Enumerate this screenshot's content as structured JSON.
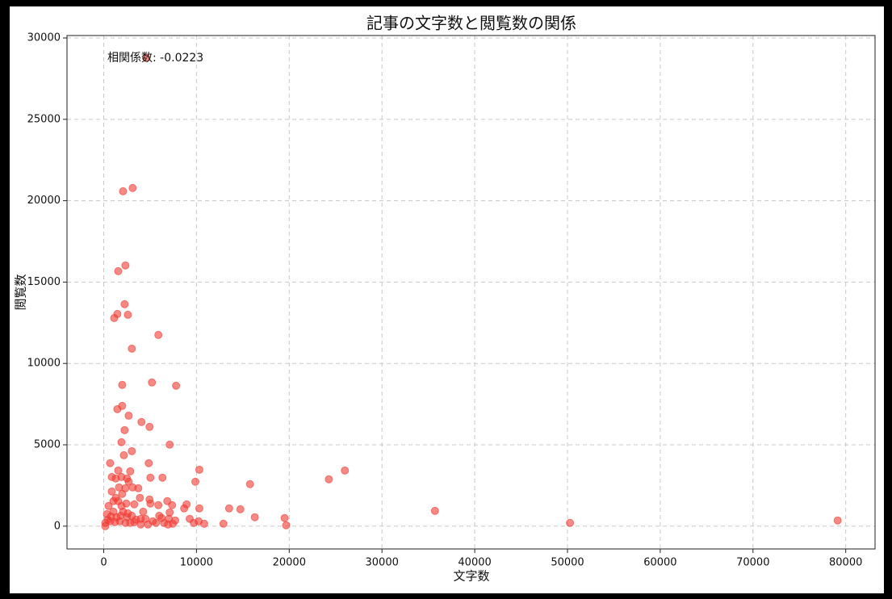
{
  "chart_data": {
    "type": "scatter",
    "title": "記事の文字数と閲覧数の関係",
    "xlabel": "文字数",
    "ylabel": "閲覧数",
    "annotation": "相関係数: -0.0223",
    "color": "#f03a32",
    "alpha": 0.6,
    "grid": true,
    "xlim": [
      -3960,
      83160
    ],
    "ylim": [
      -1400,
      30150
    ],
    "xticks": [
      0,
      10000,
      20000,
      30000,
      40000,
      50000,
      60000,
      70000,
      80000
    ],
    "yticks": [
      0,
      5000,
      10000,
      15000,
      20000,
      25000,
      30000
    ],
    "x": [
      4590,
      2080,
      3120,
      2340,
      1560,
      2250,
      1470,
      2600,
      1130,
      5890,
      3030,
      5200,
      1990,
      7800,
      1990,
      1470,
      2690,
      4070,
      4940,
      2250,
      7110,
      1910,
      3030,
      2170,
      690,
      4850,
      10310,
      26000,
      1560,
      2860,
      24270,
      9880,
      15770,
      870,
      1300,
      2510,
      5030,
      6330,
      1910,
      2690,
      3120,
      3730,
      1650,
      2340,
      870,
      1990,
      4940,
      3900,
      6850,
      8930,
      7370,
      5890,
      3290,
      1040,
      1560,
      2430,
      13520,
      14730,
      10310,
      8670,
      35710,
      4250,
      520,
      1040,
      2080,
      2600,
      3030,
      7110,
      16290,
      19500,
      350,
      780,
      1390,
      5980,
      9270,
      79130,
      3990,
      4500,
      6240,
      7020,
      5290,
      7710,
      10230,
      9710,
      10830,
      12910,
      50270,
      19670,
      170,
      690,
      1210,
      1730,
      2340,
      2860,
      3290,
      3990,
      4770,
      5630,
      6500,
      6930,
      7450,
      170,
      430,
      1820,
      2510,
      3470,
      1910,
      1300,
      5030
    ],
    "values": [
      28760,
      20580,
      20780,
      16020,
      15670,
      13640,
      13040,
      12990,
      12790,
      11750,
      10910,
      8830,
      8680,
      8630,
      7390,
      7190,
      6790,
      6400,
      6100,
      5900,
      5010,
      5160,
      4610,
      4360,
      3870,
      3870,
      3470,
      3420,
      3420,
      3370,
      2880,
      2730,
      2580,
      3020,
      2930,
      2930,
      2980,
      2980,
      3020,
      2730,
      2380,
      2330,
      2380,
      2330,
      2130,
      1980,
      1640,
      1740,
      1540,
      1340,
      1290,
      1290,
      1340,
      1540,
      1540,
      1390,
      1090,
      1040,
      1090,
      1090,
      940,
      890,
      1240,
      890,
      890,
      790,
      640,
      840,
      550,
      500,
      740,
      600,
      550,
      640,
      450,
      350,
      450,
      450,
      500,
      450,
      300,
      350,
      300,
      200,
      150,
      150,
      200,
      50,
      200,
      300,
      250,
      300,
      200,
      200,
      250,
      100,
      100,
      200,
      200,
      100,
      150,
      0,
      400,
      640,
      550,
      400,
      1240,
      1740,
      1390
    ]
  }
}
